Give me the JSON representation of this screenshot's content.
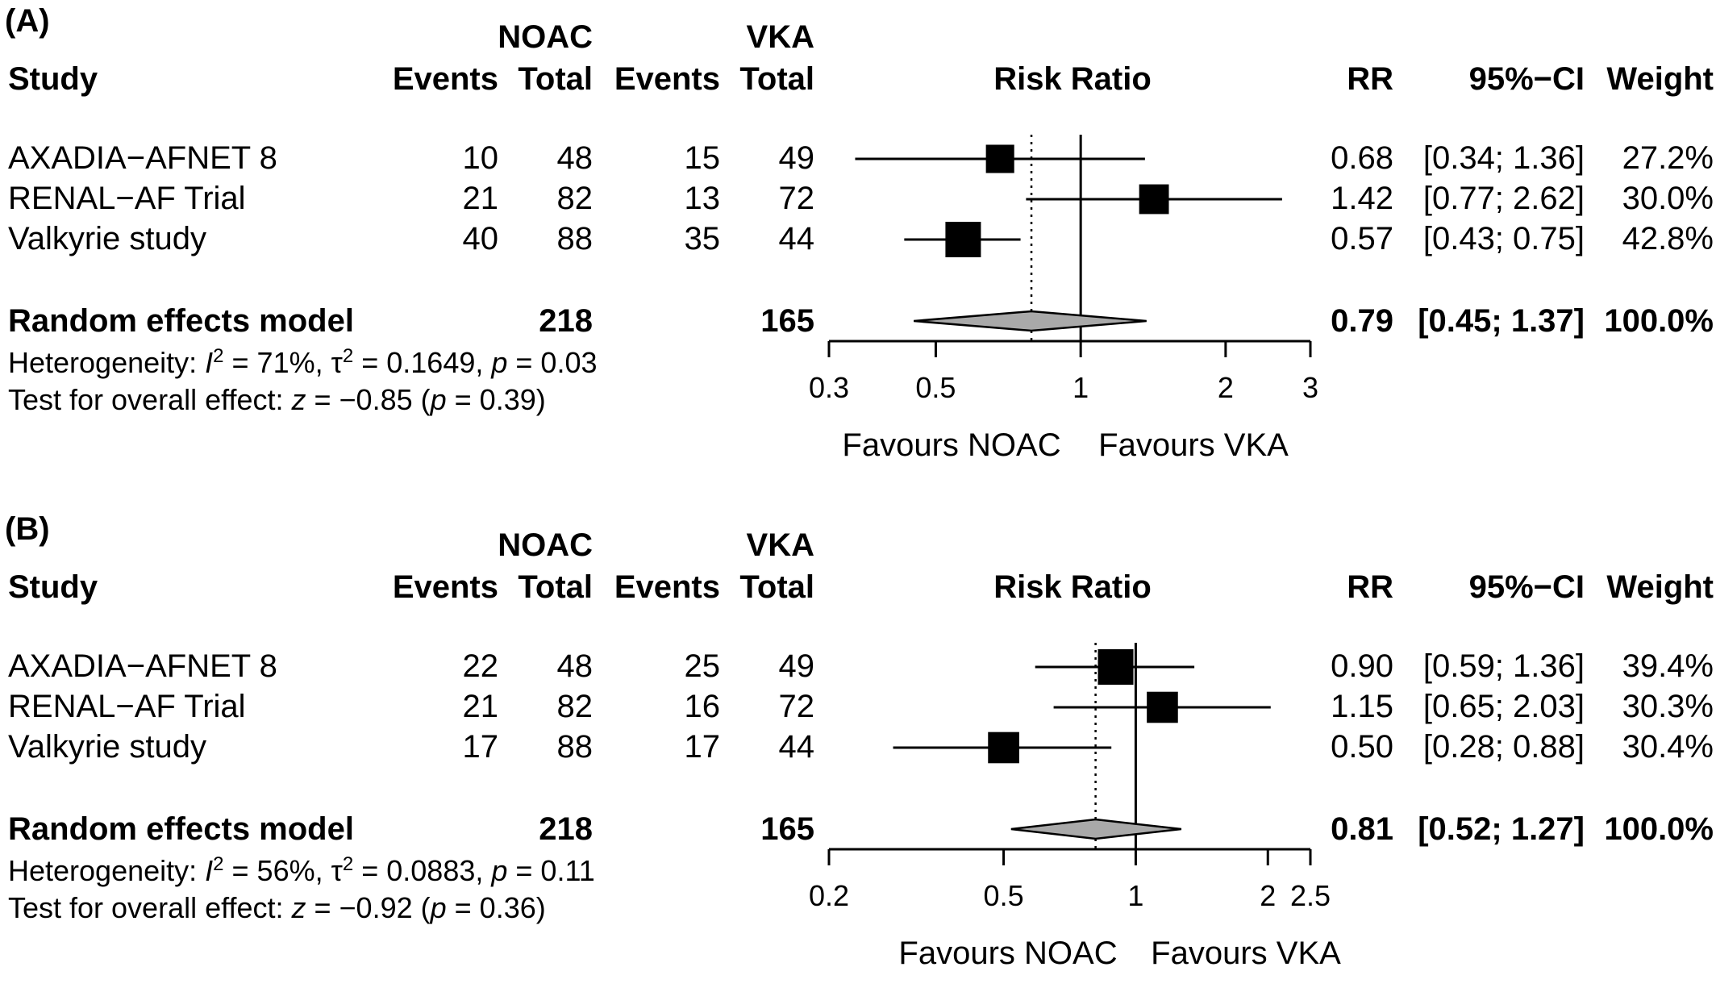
{
  "chart_data": [
    {
      "type": "forest",
      "panel_label": "(A)",
      "headers": {
        "group1": "NOAC",
        "group2": "VKA",
        "study": "Study",
        "events1": "Events",
        "total1": "Total",
        "events2": "Events",
        "total2": "Total",
        "plot": "Risk Ratio",
        "rr": "RR",
        "ci": "95%−CI",
        "weight": "Weight"
      },
      "studies": [
        {
          "name": "AXADIA−AFNET 8",
          "events1": "10",
          "total1": "48",
          "events2": "15",
          "total2": "49",
          "rr": 0.68,
          "lo": 0.34,
          "hi": 1.36,
          "rr_text": "0.68",
          "ci_text": "[0.34; 1.36]",
          "weight_text": "27.2%",
          "weight": 27.2
        },
        {
          "name": "RENAL−AF Trial",
          "events1": "21",
          "total1": "82",
          "events2": "13",
          "total2": "72",
          "rr": 1.42,
          "lo": 0.77,
          "hi": 2.62,
          "rr_text": "1.42",
          "ci_text": "[0.77; 2.62]",
          "weight_text": "30.0%",
          "weight": 30.0
        },
        {
          "name": "Valkyrie study",
          "events1": "40",
          "total1": "88",
          "events2": "35",
          "total2": "44",
          "rr": 0.57,
          "lo": 0.43,
          "hi": 0.75,
          "rr_text": "0.57",
          "ci_text": "[0.43; 0.75]",
          "weight_text": "42.8%",
          "weight": 42.8
        }
      ],
      "summary": {
        "name": "Random effects model",
        "total1": "218",
        "total2": "165",
        "rr": 0.79,
        "lo": 0.45,
        "hi": 1.37,
        "rr_text": "0.79",
        "ci_text": "[0.45; 1.37]",
        "weight_text": "100.0%"
      },
      "heterogeneity": {
        "prefix": "Heterogeneity: ",
        "i2_symbol": "I",
        "i2_value": " = 71%, ",
        "tau_symbol": "τ",
        "tau_value": " = 0.1649, ",
        "p_symbol": "p",
        "p_value": " = 0.03"
      },
      "overall_effect": {
        "prefix": "Test for overall effect: ",
        "z_symbol": "z",
        "z_value": " = −0.85 (",
        "p_symbol": "p",
        "p_value": " = 0.39)"
      },
      "x_axis": {
        "scale": "log",
        "ticks": [
          0.3,
          0.5,
          1,
          2,
          3
        ],
        "tick_labels": [
          "0.3",
          "0.5",
          "1",
          "2",
          "3"
        ],
        "range": [
          0.3,
          3
        ]
      },
      "favours": {
        "left": "Favours NOAC",
        "right": "Favours VKA"
      }
    },
    {
      "type": "forest",
      "panel_label": "(B)",
      "headers": {
        "group1": "NOAC",
        "group2": "VKA",
        "study": "Study",
        "events1": "Events",
        "total1": "Total",
        "events2": "Events",
        "total2": "Total",
        "plot": "Risk Ratio",
        "rr": "RR",
        "ci": "95%−CI",
        "weight": "Weight"
      },
      "studies": [
        {
          "name": "AXADIA−AFNET 8",
          "events1": "22",
          "total1": "48",
          "events2": "25",
          "total2": "49",
          "rr": 0.9,
          "lo": 0.59,
          "hi": 1.36,
          "rr_text": "0.90",
          "ci_text": "[0.59; 1.36]",
          "weight_text": "39.4%",
          "weight": 39.4
        },
        {
          "name": "RENAL−AF Trial",
          "events1": "21",
          "total1": "82",
          "events2": "16",
          "total2": "72",
          "rr": 1.15,
          "lo": 0.65,
          "hi": 2.03,
          "rr_text": "1.15",
          "ci_text": "[0.65; 2.03]",
          "weight_text": "30.3%",
          "weight": 30.3
        },
        {
          "name": "Valkyrie study",
          "events1": "17",
          "total1": "88",
          "events2": "17",
          "total2": "44",
          "rr": 0.5,
          "lo": 0.28,
          "hi": 0.88,
          "rr_text": "0.50",
          "ci_text": "[0.28; 0.88]",
          "weight_text": "30.4%",
          "weight": 30.4
        }
      ],
      "summary": {
        "name": "Random effects model",
        "total1": "218",
        "total2": "165",
        "rr": 0.81,
        "lo": 0.52,
        "hi": 1.27,
        "rr_text": "0.81",
        "ci_text": "[0.52; 1.27]",
        "weight_text": "100.0%"
      },
      "heterogeneity": {
        "prefix": "Heterogeneity: ",
        "i2_symbol": "I",
        "i2_value": " = 56%, ",
        "tau_symbol": "τ",
        "tau_value": " = 0.0883, ",
        "p_symbol": "p",
        "p_value": " = 0.11"
      },
      "overall_effect": {
        "prefix": "Test for overall effect: ",
        "z_symbol": "z",
        "z_value": " = −0.92 (",
        "p_symbol": "p",
        "p_value": " = 0.36)"
      },
      "x_axis": {
        "scale": "log",
        "ticks": [
          0.2,
          0.5,
          1,
          2,
          2.5
        ],
        "tick_labels": [
          "0.2",
          "0.5",
          "1",
          "2",
          "2.5"
        ],
        "range": [
          0.2,
          2.5
        ]
      },
      "favours": {
        "left": "Favours NOAC",
        "right": "Favours VKA"
      }
    }
  ]
}
